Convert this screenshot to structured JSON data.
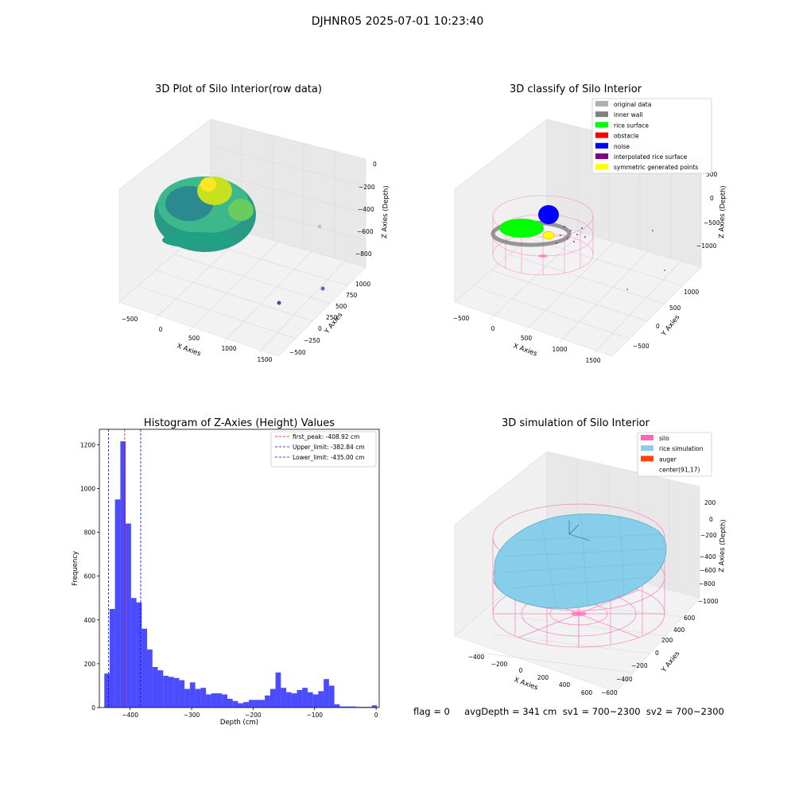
{
  "suptitle": "DJHNR05 2025-07-01 10:23:40",
  "footer": "flag = 0     avgDepth = 341 cm  sv1 = 700~2300  sv2 = 700~2300",
  "colors": {
    "histogram_bar": "#0000ff",
    "first_peak_line": "#ff0000",
    "limit_line": "#0000ff",
    "silo_wireframe": "#ff69b4",
    "rice_surface_sim": "#87ceeb"
  },
  "panels": {
    "raw": {
      "title": "3D Plot of Silo Interior(row data)",
      "xlabel": "X Axies",
      "ylabel": "Y Axies",
      "zlabel": "Z Axies (Depth)",
      "xticks": [
        "−500",
        "0",
        "500",
        "1000",
        "1500"
      ],
      "yticks": [
        "−500",
        "−250",
        "0",
        "250",
        "500",
        "750",
        "1000"
      ],
      "zticks": [
        "−800",
        "−600",
        "−400",
        "−200",
        "0"
      ]
    },
    "classify": {
      "title": "3D classify of Silo Interior",
      "xlabel": "X Axies",
      "ylabel": "Y Axies",
      "zlabel": "Z Axies (Depth)",
      "xticks": [
        "−500",
        "0",
        "500",
        "1000",
        "1500"
      ],
      "yticks": [
        "−500",
        "0",
        "500",
        "1000"
      ],
      "zticks": [
        "−1000",
        "−500",
        "0",
        "500"
      ],
      "legend": [
        {
          "label": "original data",
          "color": "#b0b0b0"
        },
        {
          "label": "inner wall",
          "color": "#808080"
        },
        {
          "label": "rice surface",
          "color": "#00ff00"
        },
        {
          "label": "obstacle",
          "color": "#ff0000"
        },
        {
          "label": "noise",
          "color": "#0000ff"
        },
        {
          "label": "interpolated rice surface",
          "color": "#800080"
        },
        {
          "label": "symmetric generated points",
          "color": "#ffff00"
        }
      ]
    },
    "simulation": {
      "title": "3D simulation of Silo Interior",
      "xlabel": "X Axies",
      "ylabel": "Y Axies",
      "zlabel": "Z Axies (Depth)",
      "xticks": [
        "−400",
        "−200",
        "0",
        "200",
        "400",
        "600"
      ],
      "yticks": [
        "−600",
        "−400",
        "−200",
        "0",
        "200",
        "400",
        "600"
      ],
      "zticks": [
        "−1000",
        "−800",
        "−600",
        "−400",
        "−200",
        "0",
        "200"
      ],
      "legend": [
        {
          "label": "silo",
          "color": "#ff69b4"
        },
        {
          "label": "rice simulation",
          "color": "#87ceeb"
        },
        {
          "label": "auger",
          "color": "#ff4500"
        },
        {
          "label": "center(91,17)",
          "color": "#ffffff"
        }
      ]
    }
  },
  "chart_data": {
    "type": "bar",
    "title": "Histogram of Z-Axies (Height) Values",
    "xlabel": "Depth (cm)",
    "ylabel": "Frequency",
    "xlim": [
      -450,
      5
    ],
    "ylim": [
      0,
      1270
    ],
    "xticks": [
      -400,
      -300,
      -200,
      -100,
      0
    ],
    "yticks": [
      0,
      200,
      400,
      600,
      800,
      1000,
      1200
    ],
    "bin_width": 8.7,
    "bins": [
      {
        "x0": -442.0,
        "value": 155
      },
      {
        "x0": -433.3,
        "value": 450
      },
      {
        "x0": -424.6,
        "value": 950
      },
      {
        "x0": -415.9,
        "value": 1215
      },
      {
        "x0": -407.2,
        "value": 840
      },
      {
        "x0": -398.5,
        "value": 500
      },
      {
        "x0": -389.8,
        "value": 480
      },
      {
        "x0": -381.1,
        "value": 360
      },
      {
        "x0": -372.4,
        "value": 265
      },
      {
        "x0": -363.7,
        "value": 185
      },
      {
        "x0": -355.0,
        "value": 170
      },
      {
        "x0": -346.3,
        "value": 145
      },
      {
        "x0": -337.6,
        "value": 140
      },
      {
        "x0": -328.9,
        "value": 135
      },
      {
        "x0": -320.2,
        "value": 125
      },
      {
        "x0": -311.5,
        "value": 85
      },
      {
        "x0": -302.8,
        "value": 115
      },
      {
        "x0": -294.1,
        "value": 85
      },
      {
        "x0": -285.4,
        "value": 90
      },
      {
        "x0": -276.7,
        "value": 60
      },
      {
        "x0": -268.0,
        "value": 65
      },
      {
        "x0": -259.3,
        "value": 65
      },
      {
        "x0": -250.6,
        "value": 60
      },
      {
        "x0": -241.9,
        "value": 40
      },
      {
        "x0": -233.2,
        "value": 30
      },
      {
        "x0": -224.5,
        "value": 20
      },
      {
        "x0": -215.8,
        "value": 25
      },
      {
        "x0": -207.1,
        "value": 35
      },
      {
        "x0": -198.4,
        "value": 35
      },
      {
        "x0": -189.7,
        "value": 35
      },
      {
        "x0": -181.0,
        "value": 55
      },
      {
        "x0": -172.3,
        "value": 85
      },
      {
        "x0": -163.6,
        "value": 160
      },
      {
        "x0": -154.9,
        "value": 90
      },
      {
        "x0": -146.2,
        "value": 70
      },
      {
        "x0": -137.5,
        "value": 65
      },
      {
        "x0": -128.8,
        "value": 80
      },
      {
        "x0": -120.1,
        "value": 90
      },
      {
        "x0": -111.4,
        "value": 70
      },
      {
        "x0": -102.7,
        "value": 60
      },
      {
        "x0": -94.0,
        "value": 75
      },
      {
        "x0": -85.3,
        "value": 130
      },
      {
        "x0": -76.6,
        "value": 100
      },
      {
        "x0": -67.9,
        "value": 15
      },
      {
        "x0": -59.2,
        "value": 5
      },
      {
        "x0": -50.5,
        "value": 5
      },
      {
        "x0": -41.8,
        "value": 5
      },
      {
        "x0": -33.1,
        "value": 3
      },
      {
        "x0": -24.4,
        "value": 3
      },
      {
        "x0": -15.7,
        "value": 3
      },
      {
        "x0": -7.0,
        "value": 10
      }
    ],
    "vlines": [
      {
        "label": "first_peak: -408.92 cm",
        "x": -408.92,
        "color": "#ff0000"
      },
      {
        "label": "Upper_limit: -382.84 cm",
        "x": -382.84,
        "color": "#0000ff"
      },
      {
        "label": "Lower_limit: -435.00 cm",
        "x": -435.0,
        "color": "#0000ff"
      }
    ]
  }
}
